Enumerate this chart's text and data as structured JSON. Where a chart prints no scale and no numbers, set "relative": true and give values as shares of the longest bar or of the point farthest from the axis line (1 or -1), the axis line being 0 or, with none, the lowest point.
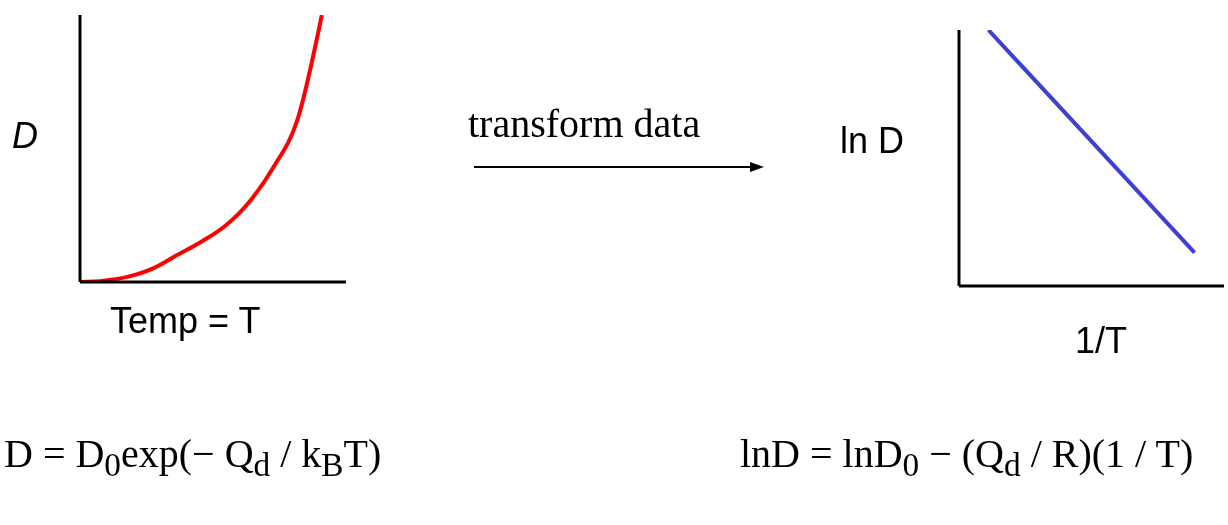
{
  "chart_data": [
    {
      "type": "line",
      "relative": true,
      "xlabel": "Temp = T",
      "ylabel": "D",
      "categories": [
        null,
        null,
        null,
        null,
        null,
        null,
        null,
        null,
        null,
        null,
        null,
        null
      ],
      "series": [
        {
          "color": "#ff0000",
          "values": [
            0,
            0.005,
            0.02,
            0.05,
            0.1,
            0.15,
            0.21,
            0.3,
            0.43,
            0.61,
            1,
            null
          ]
        }
      ],
      "annotations": [
        "transform data",
        "D = D$_{0}$exp(− Q$_{d}$ / k$_{B}$T)"
      ]
    },
    {
      "type": "line",
      "relative": true,
      "xlabel": "1/T",
      "ylabel": "ln D",
      "categories": [
        null,
        null,
        null,
        null,
        null,
        null,
        null,
        null,
        null,
        null
      ],
      "series": [
        {
          "color": "#4040d0",
          "values": [
            null,
            1,
            null,
            null,
            null,
            null,
            null,
            null,
            0.13,
            null
          ]
        }
      ],
      "annotations": [
        "lnD = lnD$_{0}$ − (Q$_{d}$ / R)(1 / T)"
      ]
    }
  ]
}
